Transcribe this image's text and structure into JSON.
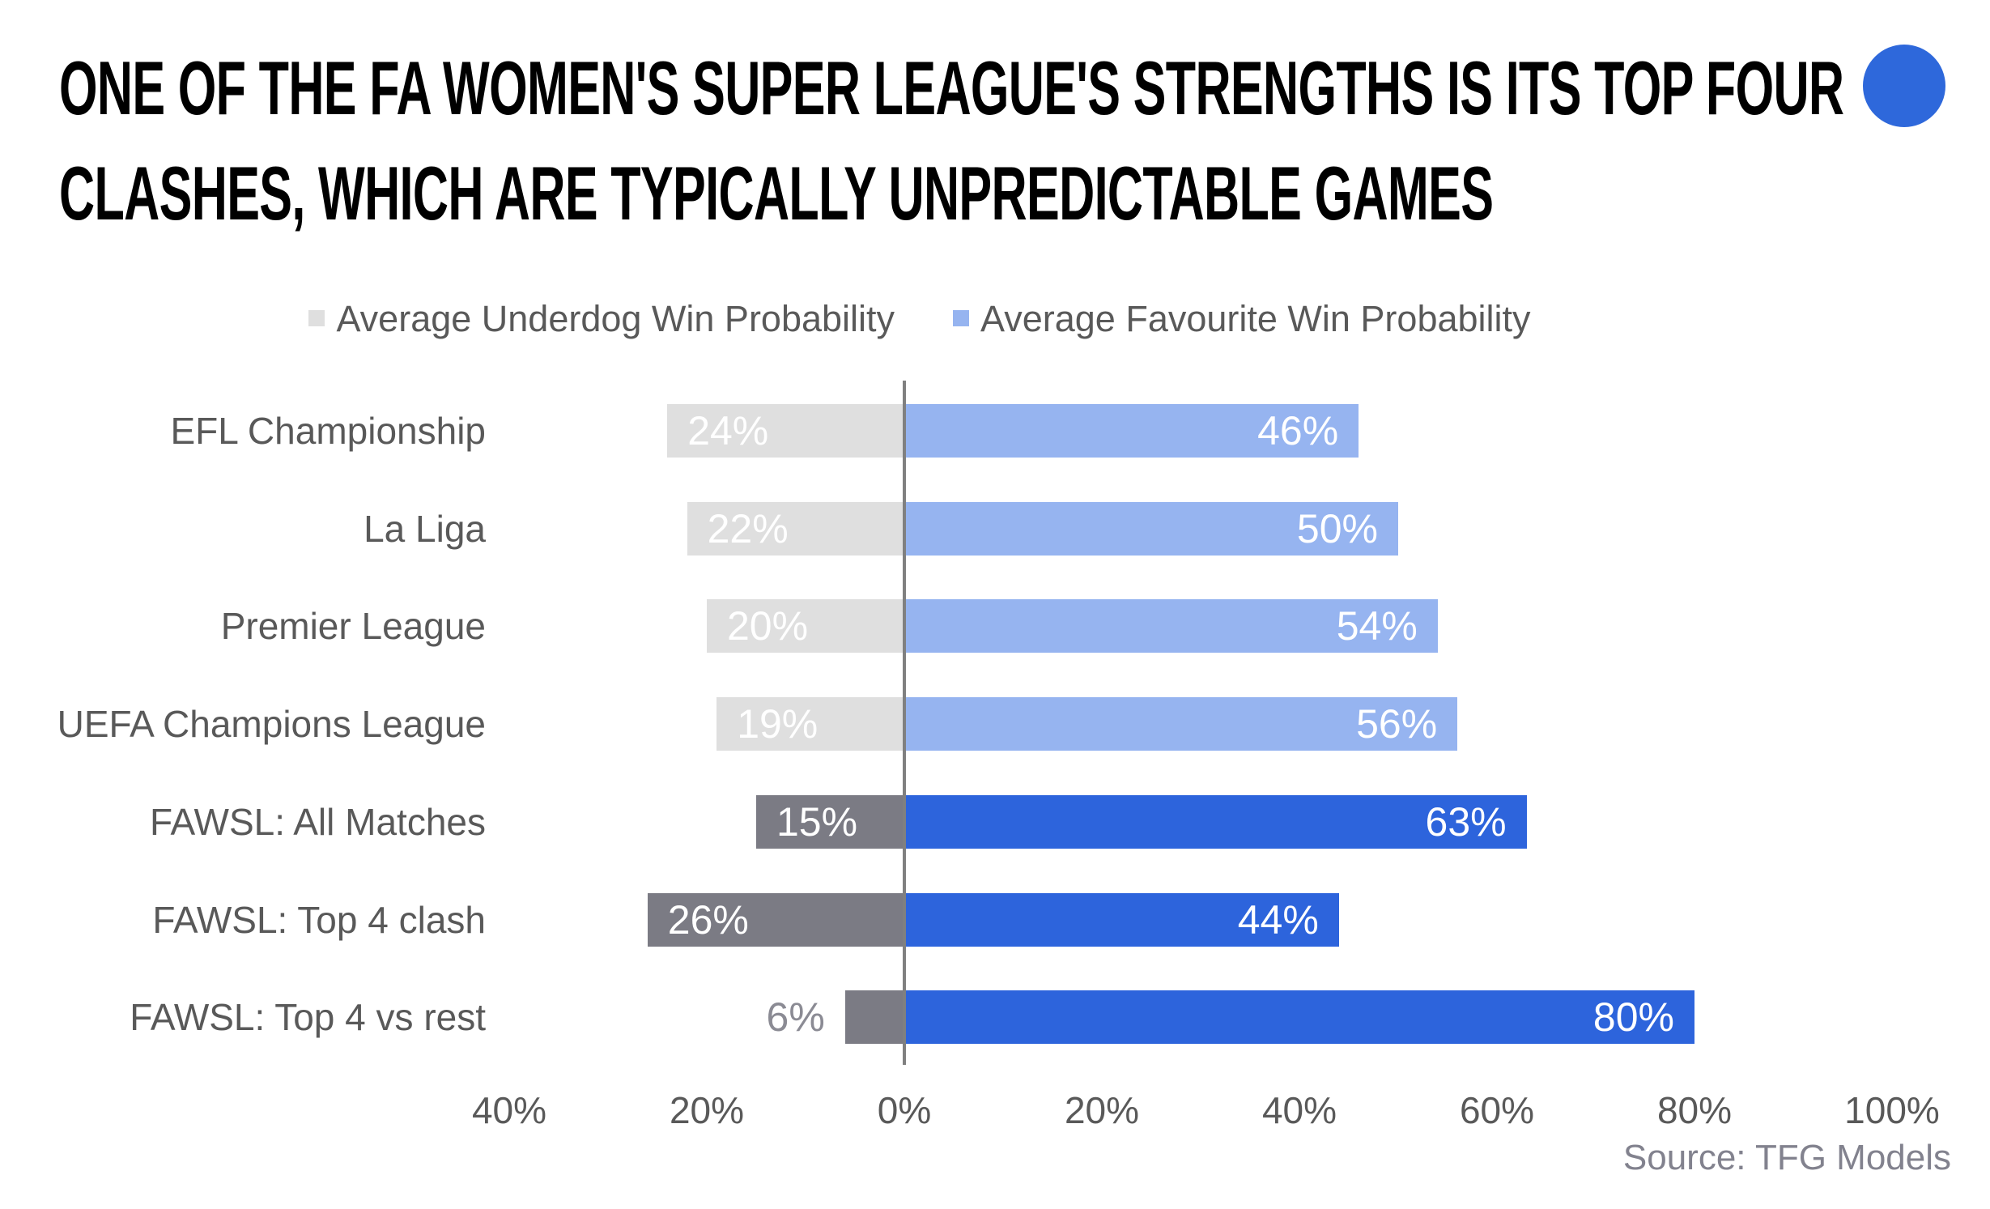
{
  "header": {
    "title_lines": [
      "ONE OF THE FA WOMEN'S SUPER LEAGUE'S STRENGTHS IS ITS TOP FOUR",
      "CLASHES, WHICH ARE TYPICALLY UNPREDICTABLE GAMES"
    ],
    "brand_dot_color": "#2E68DB"
  },
  "legend": [
    {
      "label": "Average Underdog Win Probability",
      "color": "#DFDFDF"
    },
    {
      "label": "Average Favourite Win Probability",
      "color": "#96B4F0"
    }
  ],
  "chart_data": {
    "type": "bar",
    "orientation": "horizontal-diverging",
    "title": "ONE OF THE FA WOMEN'S SUPER LEAGUE'S STRENGTHS IS ITS TOP FOUR CLASHES, WHICH ARE TYPICALLY UNPREDICTABLE GAMES",
    "categories": [
      "EFL Championship",
      "La Liga",
      "Premier League",
      "UEFA Champions League",
      "FAWSL: All Matches",
      "FAWSL: Top 4 clash",
      "FAWSL: Top 4 vs rest"
    ],
    "series": [
      {
        "name": "Average Underdog Win Probability",
        "direction": "left",
        "values": [
          24,
          22,
          20,
          19,
          15,
          26,
          6
        ]
      },
      {
        "name": "Average Favourite Win Probability",
        "direction": "right",
        "values": [
          46,
          50,
          54,
          56,
          63,
          44,
          80
        ]
      }
    ],
    "highlight_rows": [
      4,
      5,
      6
    ],
    "value_label_format": "percent",
    "x_axis": {
      "ticks": [
        -40,
        -20,
        0,
        20,
        40,
        60,
        80,
        100
      ],
      "tick_labels": [
        "40%",
        "20%",
        "0%",
        "20%",
        "40%",
        "60%",
        "80%",
        "100%"
      ],
      "xlim": [
        -45,
        107
      ],
      "grid": false
    },
    "legend_position": "top",
    "colors": {
      "underdog": "#DFDFDF",
      "favourite": "#96B4F0",
      "underdog_highlight": "#7B7B84",
      "favourite_highlight": "#2D64DC",
      "axis_line": "#808080",
      "value_label": "#FFFFFF",
      "outside_label": "#8B8B94",
      "category_label": "#595959"
    }
  },
  "source": "Source: TFG Models"
}
